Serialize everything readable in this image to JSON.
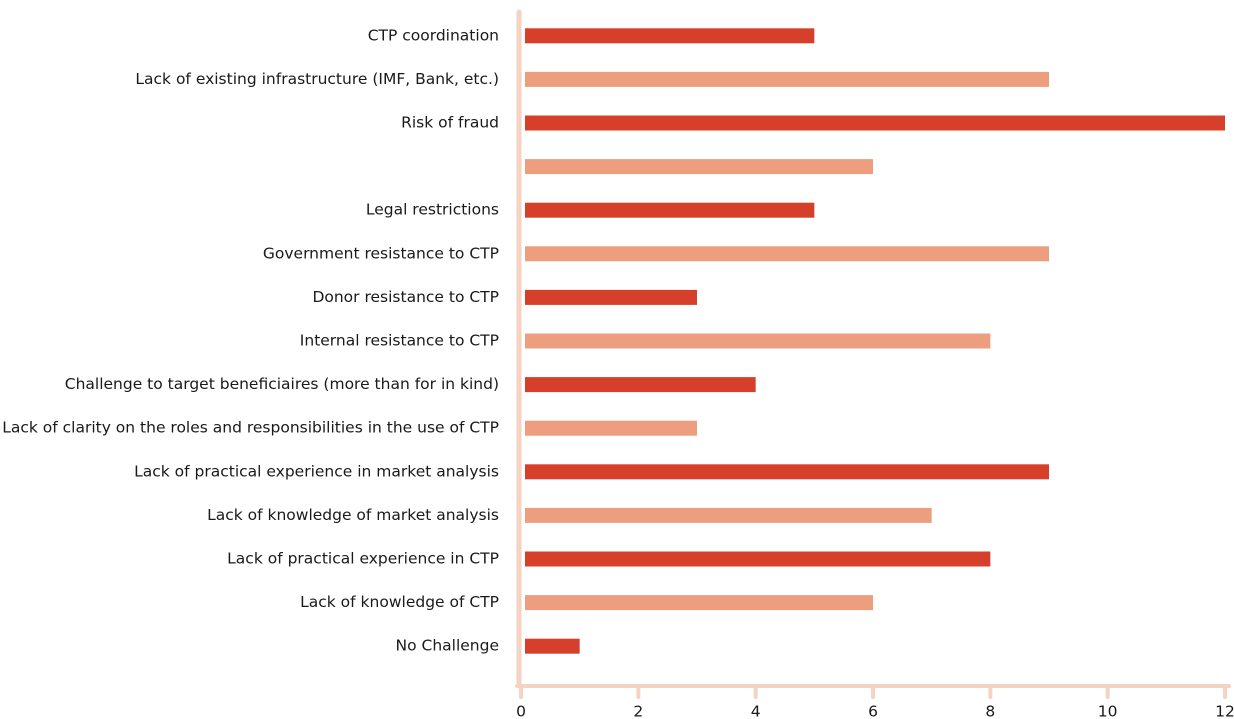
{
  "chart_data": {
    "type": "barh",
    "categories": [
      "CTP coordination",
      "Lack of existing infrastructure (IMF, Bank, etc.)",
      "Risk of fraud",
      null,
      "Legal restrictions",
      "Government resistance to CTP",
      "Donor resistance to CTP",
      "Internal resistance to CTP",
      "Challenge to target beneficiaires (more than for in kind)",
      "Lack of clarity on the roles and responsibilities in the use of CTP",
      "Lack of practical experience in market analysis",
      "Lack of knowledge of market analysis",
      "Lack of practical experience in CTP",
      "Lack of knowledge of CTP",
      "No Challenge"
    ],
    "values": [
      5,
      9,
      12,
      6,
      5,
      9,
      3,
      8,
      4,
      3,
      9,
      7,
      8,
      6,
      1
    ],
    "colors": [
      "#d6402b",
      "#ec9e7e"
    ],
    "xlim": [
      0,
      12
    ],
    "xticks": [
      0,
      2,
      4,
      6,
      8,
      10,
      12
    ],
    "grid": false
  }
}
